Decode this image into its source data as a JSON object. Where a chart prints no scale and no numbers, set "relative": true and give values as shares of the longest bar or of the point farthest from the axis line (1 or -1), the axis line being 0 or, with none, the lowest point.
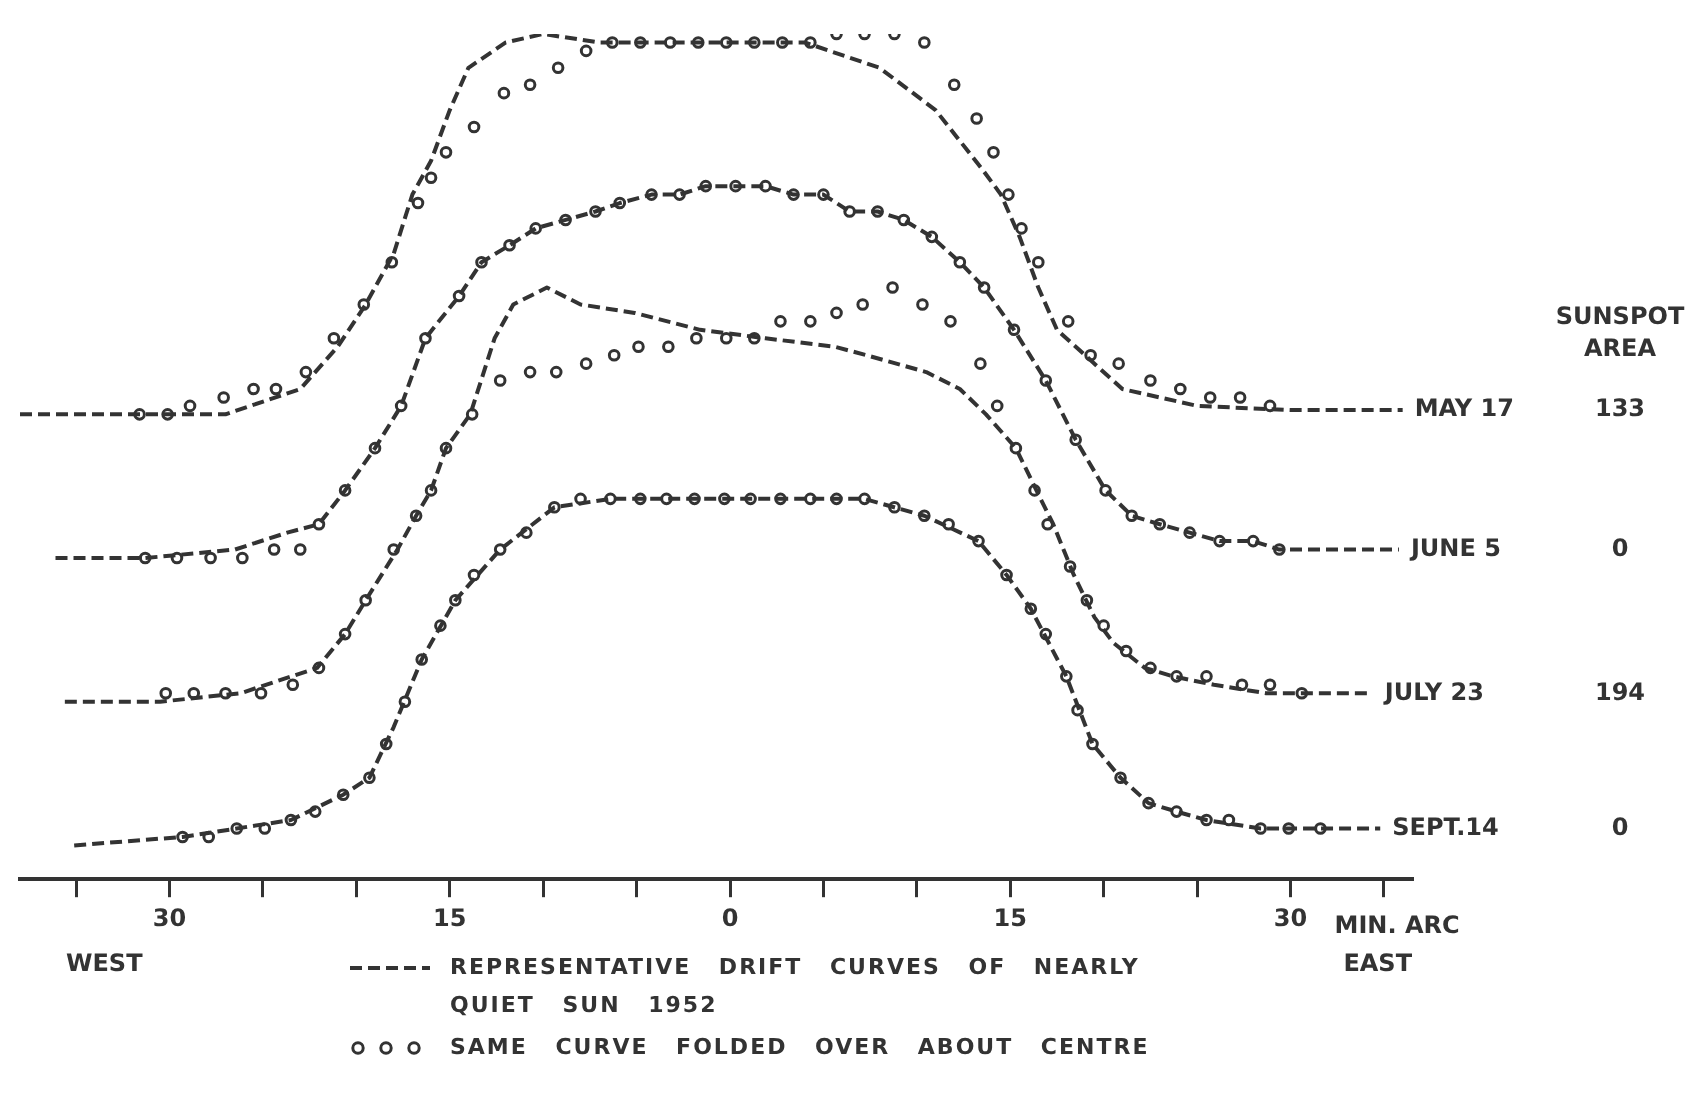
{
  "chart_data": {
    "type": "line",
    "relative": true,
    "xlabel": "MIN. ARC",
    "xlim": [
      -38,
      36.5
    ],
    "xticks": [
      {
        "value": -35,
        "label": null
      },
      {
        "value": -30,
        "label": "30"
      },
      {
        "value": -25,
        "label": null
      },
      {
        "value": -20,
        "label": null
      },
      {
        "value": -15,
        "label": "15"
      },
      {
        "value": -10,
        "label": null
      },
      {
        "value": -5,
        "label": null
      },
      0,
      {
        "value": 5,
        "label": null
      },
      {
        "value": 10,
        "label": null
      },
      15,
      {
        "value": 20,
        "label": null
      },
      {
        "value": 25,
        "label": null
      },
      30,
      {
        "value": 35,
        "label": null
      }
    ],
    "grid": false,
    "legend": "bottom",
    "line_style": "dashed",
    "series": [
      {
        "marker": "none",
        "name": "REPRESENTATIVE DRIFT CURVES OF NEARLY QUIET SUN 1952",
        "color": "#333333",
        "x": [
          -38,
          -32,
          -27,
          -23,
          -21,
          -19.5,
          -18,
          -17,
          -16,
          -15,
          -14,
          -12,
          -10,
          -7,
          0,
          4,
          8,
          11,
          13.5,
          14.5,
          15.5,
          16.5,
          17.5,
          19,
          21,
          25,
          30,
          36
        ],
        "values": [
          0.55,
          0.55,
          0.55,
          0.58,
          0.63,
          0.68,
          0.74,
          0.81,
          0.85,
          0.91,
          0.96,
          0.99,
          1.0,
          0.99,
          0.99,
          0.99,
          0.96,
          0.91,
          0.84,
          0.81,
          0.76,
          0.7,
          0.65,
          0.62,
          0.58,
          0.56,
          0.555,
          0.555
        ]
      },
      {
        "type": "scatter",
        "marker": "circle",
        "name": "SAME CURVE FOLDED OVER ABOUT CENTRE",
        "color": "#333333",
        "x": [
          -31.6,
          -30.1,
          -28.9,
          -27.1,
          -25.5,
          -24.3,
          -22.7,
          -21.2,
          -19.6,
          -18.1,
          -16.7,
          -16,
          -15.2,
          -13.7,
          -12.1,
          -10.7,
          -9.2,
          -7.7,
          -6.3,
          -4.8,
          -3.2,
          -1.7,
          -0.2,
          1.3,
          2.8,
          4.3,
          5.7,
          7.2,
          8.8,
          10.4,
          12,
          13.2,
          14.1,
          14.9,
          15.6,
          16.5,
          18.1,
          19.3,
          20.8,
          22.5,
          24.1,
          25.7,
          27.3,
          28.9
        ],
        "values": [
          0.55,
          0.55,
          0.56,
          0.57,
          0.58,
          0.58,
          0.6,
          0.64,
          0.68,
          0.73,
          0.8,
          0.83,
          0.86,
          0.89,
          0.93,
          0.94,
          0.96,
          0.98,
          0.99,
          0.99,
          0.99,
          0.99,
          0.99,
          0.99,
          0.99,
          0.99,
          1.0,
          1.0,
          1.0,
          0.99,
          0.94,
          0.9,
          0.86,
          0.81,
          0.77,
          0.73,
          0.66,
          0.62,
          0.61,
          0.59,
          0.58,
          0.57,
          0.57,
          0.56
        ]
      },
      {
        "marker": "none",
        "color": "#333333",
        "x": [
          -36.1,
          -31.3,
          -26.5,
          -23.7,
          -22,
          -20.6,
          -19,
          -17.6,
          -16.3,
          -14.5,
          -13.3,
          -11.8,
          -10.4,
          -8.8,
          -7.2,
          -5.9,
          -4.2,
          -2.7,
          -1.3,
          0.3,
          1.9,
          3.4,
          5,
          6.4,
          7.9,
          9.3,
          10.8,
          12.3,
          13.6,
          15.2,
          16.9,
          18.5,
          20.1,
          21.5,
          23,
          24.6,
          26.2,
          28,
          29.4,
          35.8
        ],
        "values": [
          0.38,
          0.38,
          0.39,
          0.41,
          0.42,
          0.46,
          0.51,
          0.56,
          0.64,
          0.69,
          0.73,
          0.75,
          0.77,
          0.78,
          0.79,
          0.8,
          0.81,
          0.81,
          0.82,
          0.82,
          0.82,
          0.81,
          0.81,
          0.79,
          0.79,
          0.78,
          0.76,
          0.73,
          0.7,
          0.65,
          0.59,
          0.52,
          0.46,
          0.43,
          0.42,
          0.41,
          0.4,
          0.4,
          0.39,
          0.39
        ]
      },
      {
        "type": "scatter",
        "marker": "circle",
        "color": "#333333",
        "x": [
          -31.3,
          -29.6,
          -27.8,
          -26.1,
          -24.4,
          -23,
          -22,
          -20.6,
          -19,
          -17.6,
          -16.3,
          -14.5,
          -13.3,
          -11.8,
          -10.4,
          -8.8,
          -7.2,
          -5.9,
          -4.2,
          -2.7,
          -1.3,
          0.3,
          1.9,
          3.4,
          5,
          6.4,
          7.9,
          9.3,
          10.8,
          12.3,
          13.6,
          15.2,
          16.9,
          18.5,
          20.1,
          21.5,
          23,
          24.6,
          26.2,
          28,
          29.4
        ],
        "values": [
          0.38,
          0.38,
          0.38,
          0.38,
          0.39,
          0.39,
          0.42,
          0.46,
          0.51,
          0.56,
          0.64,
          0.69,
          0.73,
          0.75,
          0.77,
          0.78,
          0.79,
          0.8,
          0.81,
          0.81,
          0.82,
          0.82,
          0.82,
          0.81,
          0.81,
          0.79,
          0.79,
          0.78,
          0.76,
          0.73,
          0.7,
          0.65,
          0.59,
          0.52,
          0.46,
          0.43,
          0.42,
          0.41,
          0.4,
          0.4,
          0.39
        ]
      },
      {
        "marker": "none",
        "color": "#333333",
        "x": [
          -35.6,
          -30.5,
          -26.2,
          -22.1,
          -20.6,
          -19.5,
          -17.8,
          -16.8,
          -16,
          -15.2,
          -13.9,
          -12.6,
          -11.6,
          -9.8,
          -8,
          -5.1,
          -1.6,
          1.9,
          5.6,
          7.3,
          10.5,
          12.3,
          13.7,
          15.3,
          16.4,
          17.3,
          18.4,
          19.5,
          20.5,
          22.2,
          23.7,
          25.9,
          28.7,
          32.3,
          34.4
        ],
        "values": [
          0.21,
          0.21,
          0.22,
          0.25,
          0.29,
          0.33,
          0.39,
          0.43,
          0.46,
          0.51,
          0.55,
          0.64,
          0.68,
          0.7,
          0.68,
          0.67,
          0.65,
          0.64,
          0.63,
          0.62,
          0.6,
          0.58,
          0.55,
          0.51,
          0.46,
          0.42,
          0.36,
          0.31,
          0.28,
          0.25,
          0.24,
          0.23,
          0.22,
          0.22,
          0.22
        ]
      },
      {
        "type": "scatter",
        "marker": "circle",
        "color": "#333333",
        "x": [
          -30.2,
          -28.7,
          -27,
          -25.1,
          -23.4,
          -22,
          -20.6,
          -19.5,
          -18,
          -16.8,
          -16,
          -15.2,
          -13.8,
          -12.3,
          -10.7,
          -9.3,
          -7.7,
          -6.2,
          -4.9,
          -3.3,
          -1.8,
          -0.2,
          1.3,
          2.7,
          4.3,
          5.7,
          7.1,
          8.7,
          10.3,
          11.8,
          13.4,
          14.3,
          15.3,
          16.3,
          17,
          18.2,
          19.1,
          20,
          21.2,
          22.5,
          23.9,
          25.5,
          27.4,
          28.9,
          30.6
        ],
        "values": [
          0.22,
          0.22,
          0.22,
          0.22,
          0.23,
          0.25,
          0.29,
          0.33,
          0.39,
          0.43,
          0.46,
          0.51,
          0.55,
          0.59,
          0.6,
          0.6,
          0.61,
          0.62,
          0.63,
          0.63,
          0.64,
          0.64,
          0.64,
          0.66,
          0.66,
          0.67,
          0.68,
          0.7,
          0.68,
          0.66,
          0.61,
          0.56,
          0.51,
          0.46,
          0.42,
          0.37,
          0.33,
          0.3,
          0.27,
          0.25,
          0.24,
          0.24,
          0.23,
          0.23,
          0.22
        ]
      },
      {
        "marker": "none",
        "color": "#333333",
        "x": [
          -35.1,
          -29.3,
          -26.4,
          -23.5,
          -20.7,
          -19.3,
          -18,
          -16.5,
          -14.7,
          -12.3,
          -9.4,
          -6.4,
          -1.9,
          2.7,
          7.2,
          10.4,
          13.3,
          14.8,
          16.1,
          18,
          19.4,
          20.9,
          22.4,
          23.9,
          25.5,
          28.4,
          31.6,
          34.8
        ],
        "values": [
          0.04,
          0.05,
          0.06,
          0.07,
          0.1,
          0.12,
          0.18,
          0.26,
          0.33,
          0.39,
          0.44,
          0.45,
          0.45,
          0.45,
          0.45,
          0.43,
          0.4,
          0.36,
          0.32,
          0.24,
          0.16,
          0.12,
          0.09,
          0.08,
          0.07,
          0.06,
          0.06,
          0.06
        ]
      },
      {
        "type": "scatter",
        "marker": "circle",
        "color": "#333333",
        "x": [
          -29.3,
          -27.9,
          -26.4,
          -24.9,
          -23.5,
          -22.2,
          -20.7,
          -19.3,
          -18.4,
          -17.4,
          -16.5,
          -15.5,
          -14.7,
          -13.7,
          -12.3,
          -10.9,
          -9.4,
          -8,
          -6.4,
          -4.8,
          -3.4,
          -1.9,
          -0.3,
          1.1,
          2.7,
          4.3,
          5.7,
          7.2,
          8.8,
          10.4,
          11.7,
          13.3,
          14.8,
          16.1,
          16.9,
          18,
          18.6,
          19.4,
          20.9,
          22.4,
          23.9,
          25.5,
          26.7,
          28.4,
          29.9,
          31.6
        ],
        "values": [
          0.05,
          0.05,
          0.06,
          0.06,
          0.07,
          0.08,
          0.1,
          0.12,
          0.16,
          0.21,
          0.26,
          0.3,
          0.33,
          0.36,
          0.39,
          0.41,
          0.44,
          0.45,
          0.45,
          0.45,
          0.45,
          0.45,
          0.45,
          0.45,
          0.45,
          0.45,
          0.45,
          0.45,
          0.44,
          0.43,
          0.42,
          0.4,
          0.36,
          0.32,
          0.29,
          0.24,
          0.2,
          0.16,
          0.12,
          0.09,
          0.08,
          0.07,
          0.07,
          0.06,
          0.06,
          0.06
        ]
      }
    ],
    "annotations": [
      {
        "text": "MAY 17",
        "x": 36,
        "y": 0.555
      },
      {
        "text": "JUNE 5",
        "x": 35.8,
        "y": 0.39
      },
      {
        "text": "JULY 23",
        "x": 34.4,
        "y": 0.22
      },
      {
        "text": "SEPT.14",
        "x": 34.8,
        "y": 0.06
      },
      "SUNSPOT AREA",
      "133",
      "0",
      "194",
      "0",
      "WEST",
      "EAST"
    ]
  }
}
